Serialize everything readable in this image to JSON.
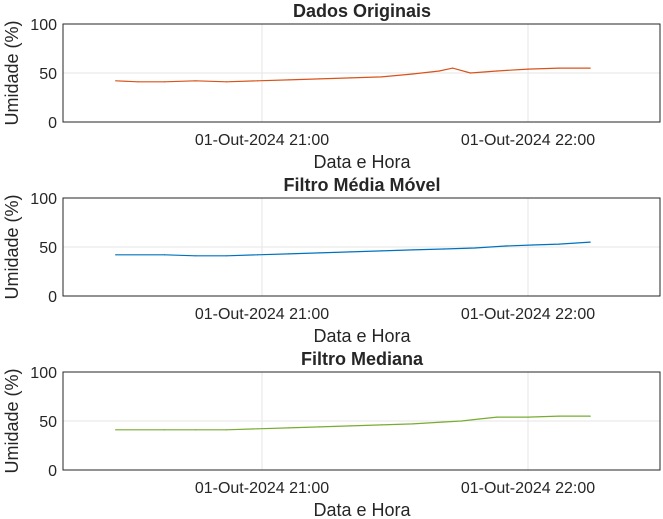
{
  "chart_data": [
    {
      "type": "line",
      "title": "Dados Originais",
      "xlabel": "Data e Hora",
      "ylabel": "Umidade (%)",
      "ylim": [
        0,
        100
      ],
      "yticks": [
        0,
        50,
        100
      ],
      "xticks": [
        "01-Out-2024 21:00",
        "01-Out-2024 22:00"
      ],
      "grid": true,
      "color": "#D95319",
      "x": [
        "20:27",
        "20:32",
        "20:38",
        "20:45",
        "20:52",
        "20:59",
        "21:06",
        "21:13",
        "21:20",
        "21:27",
        "21:34",
        "21:40",
        "21:43",
        "21:47",
        "21:53",
        "22:00",
        "22:07",
        "22:14"
      ],
      "y": [
        42,
        41,
        41,
        42,
        41,
        42,
        43,
        44,
        45,
        46,
        49,
        52,
        55,
        50,
        52,
        54,
        55,
        55
      ],
      "series": [
        {
          "values": [
            42,
            41,
            41,
            42,
            41,
            42,
            43,
            44,
            45,
            46,
            49,
            52,
            55,
            50,
            52,
            54,
            55,
            55
          ]
        }
      ]
    },
    {
      "type": "line",
      "title": "Filtro Média Móvel",
      "xlabel": "Data e Hora",
      "ylabel": "Umidade (%)",
      "ylim": [
        0,
        100
      ],
      "yticks": [
        0,
        50,
        100
      ],
      "xticks": [
        "01-Out-2024 21:00",
        "01-Out-2024 22:00"
      ],
      "grid": true,
      "color": "#0072BD",
      "x": [
        "20:27",
        "20:38",
        "20:45",
        "20:52",
        "20:59",
        "21:06",
        "21:13",
        "21:20",
        "21:27",
        "21:34",
        "21:41",
        "21:48",
        "21:55",
        "22:01",
        "22:07",
        "22:14"
      ],
      "y": [
        42,
        42,
        41,
        41,
        42,
        43,
        44,
        45,
        46,
        47,
        48,
        49,
        51,
        52,
        53,
        55
      ],
      "series": [
        {
          "values": [
            42,
            42,
            41,
            41,
            42,
            43,
            44,
            45,
            46,
            47,
            48,
            49,
            51,
            52,
            53,
            55
          ]
        }
      ]
    },
    {
      "type": "line",
      "title": "Filtro Mediana",
      "xlabel": "Data e Hora",
      "ylabel": "Umidade (%)",
      "ylim": [
        0,
        100
      ],
      "yticks": [
        0,
        50,
        100
      ],
      "xticks": [
        "01-Out-2024 21:00",
        "01-Out-2024 22:00"
      ],
      "grid": true,
      "color": "#77AC30",
      "x": [
        "20:27",
        "20:38",
        "20:45",
        "20:52",
        "20:59",
        "21:06",
        "21:13",
        "21:20",
        "21:27",
        "21:34",
        "21:41",
        "21:45",
        "21:49",
        "21:53",
        "22:00",
        "22:07",
        "22:14"
      ],
      "y": [
        41,
        41,
        41,
        41,
        42,
        43,
        44,
        45,
        46,
        47,
        49,
        50,
        52,
        54,
        54,
        55,
        55
      ],
      "series": [
        {
          "values": [
            41,
            41,
            41,
            41,
            42,
            43,
            44,
            45,
            46,
            47,
            49,
            50,
            52,
            54,
            54,
            55,
            55
          ]
        }
      ]
    }
  ]
}
